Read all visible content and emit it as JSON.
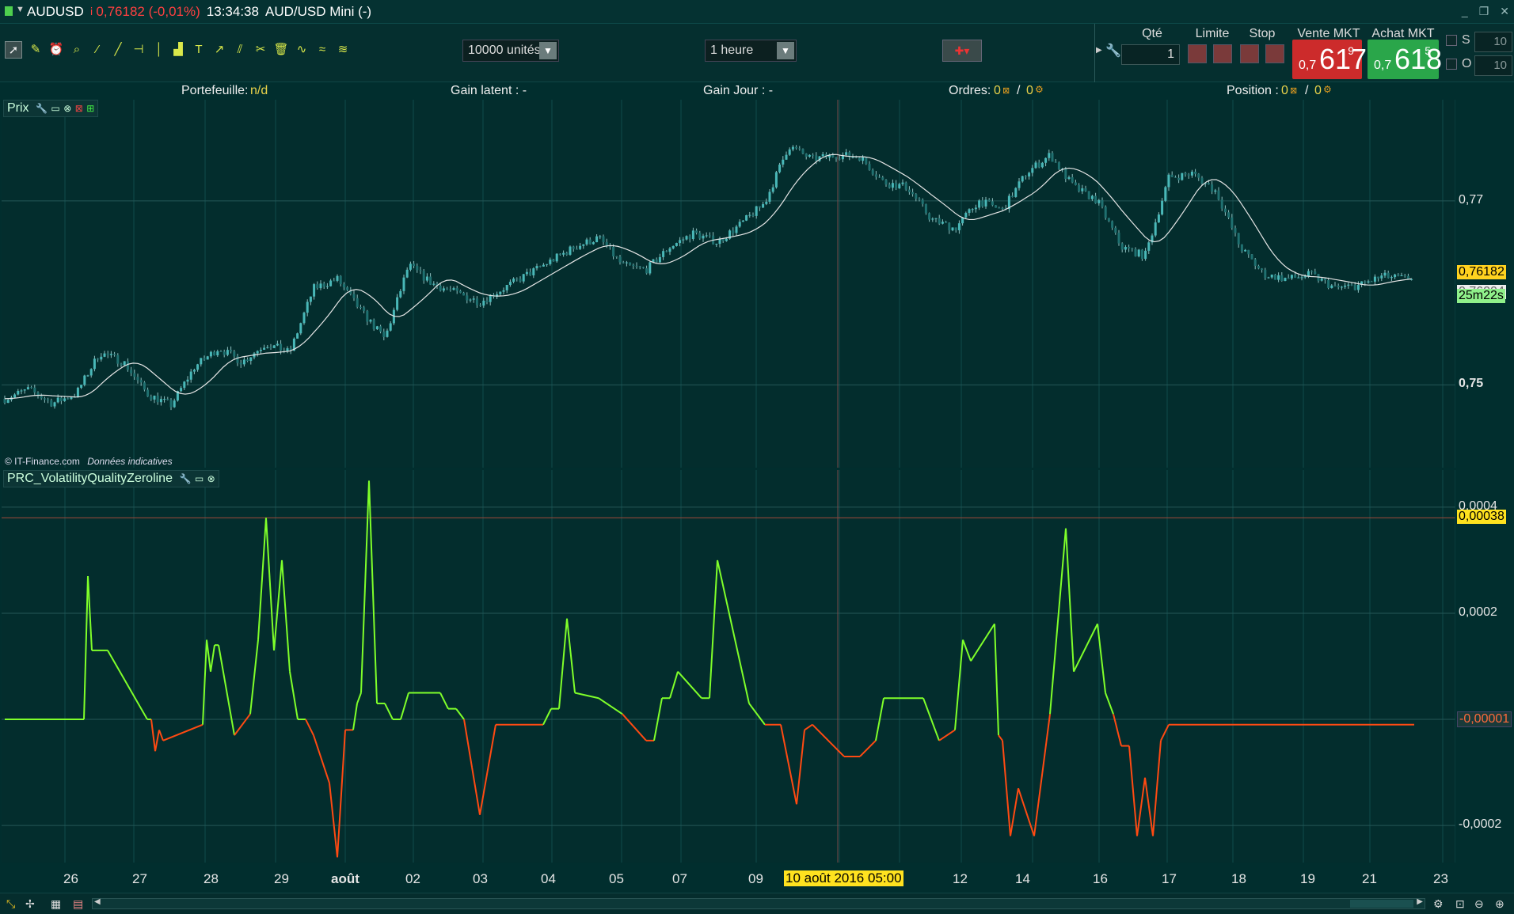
{
  "titlebar": {
    "symbol": "AUDUSD",
    "change": "0,76182 (-0,01%)",
    "time": "13:34:38",
    "instrument": "AUD/USD Mini (-)"
  },
  "toolbar": {
    "units": "10000 unités",
    "period": "1 heure",
    "qty_label": "Qté",
    "qty_value": "1",
    "limit_label": "Limite",
    "stop_label": "Stop",
    "sell_label": "Vente MKT",
    "buy_label": "Achat MKT",
    "sell_small": "0,7",
    "sell_big": "617",
    "sell_sup": "9",
    "buy_small": "0,7",
    "buy_big": "618",
    "buy_sup": "5",
    "s_label": "S",
    "s_value": "10",
    "o_label": "O",
    "o_value": "10"
  },
  "infobar": {
    "portfolio_label": "Portefeuille:",
    "portfolio_value": "n/d",
    "gain_latent": "Gain latent : -",
    "gain_jour": "Gain Jour : -",
    "ordres_label": "Ordres:",
    "ordres_a": "0",
    "ordres_b": "0",
    "position_label": "Position :",
    "position_a": "0",
    "position_b": "0"
  },
  "price_panel": {
    "label": "Prix",
    "ticks": [
      "0,77",
      "0,75"
    ],
    "last_price": "0,76182",
    "ma_value": "0,76004",
    "countdown": "25m22s",
    "credit": "© IT-Finance.com",
    "credit_note": "Données indicatives"
  },
  "indicator_panel": {
    "label": "PRC_VolatilityQualityZeroline",
    "ticks": [
      "0,0004",
      "0,0002",
      "-0,0002"
    ],
    "level_value": "0,00038",
    "last_value": "-0,00001"
  },
  "xaxis": {
    "labels": [
      "26",
      "27",
      "28",
      "29",
      "août",
      "02",
      "03",
      "04",
      "05",
      "07",
      "09",
      "12",
      "14",
      "16",
      "17",
      "18",
      "19",
      "21",
      "23"
    ],
    "cursor_label": "10 août 2016 05:00"
  },
  "colors": {
    "bg": "#012e2e",
    "candle": "#49b8b8",
    "ma": "#e6e6e6",
    "up": "#7fff2a",
    "down": "#ff4a12",
    "sell": "#d42b2b",
    "buy": "#2bb34a"
  },
  "chart_data": [
    {
      "type": "line",
      "series": [
        {
          "name": "Prix",
          "x": [
            0,
            30,
            60,
            90,
            120,
            150,
            180,
            210,
            240,
            270,
            300,
            330,
            360,
            390,
            420,
            450,
            480,
            510,
            540,
            570,
            600,
            630,
            660,
            690,
            720,
            750,
            780,
            810,
            840,
            870,
            900,
            930,
            960,
            990,
            1020,
            1050,
            1080,
            1110,
            1140,
            1170,
            1200,
            1230,
            1260,
            1290,
            1320,
            1350,
            1380,
            1410,
            1440,
            1470,
            1500,
            1530,
            1560,
            1590,
            1620,
            1650,
            1680,
            1710,
            1740,
            1770,
            1780
          ],
          "values": [
            0.7485,
            0.7495,
            0.748,
            0.749,
            0.7535,
            0.7525,
            0.749,
            0.7478,
            0.752,
            0.754,
            0.7525,
            0.7545,
            0.7535,
            0.7605,
            0.7615,
            0.758,
            0.755,
            0.763,
            0.761,
            0.76,
            0.759,
            0.7605,
            0.762,
            0.7635,
            0.765,
            0.766,
            0.763,
            0.7625,
            0.765,
            0.7665,
            0.7655,
            0.7675,
            0.7698,
            0.776,
            0.7745,
            0.775,
            0.7748,
            0.772,
            0.7715,
            0.768,
            0.767,
            0.77,
            0.769,
            0.773,
            0.775,
            0.7715,
            0.77,
            0.765,
            0.764,
            0.7725,
            0.773,
            0.771,
            0.765,
            0.762,
            0.7615,
            0.762,
            0.7605,
            0.7608,
            0.7618,
            0.7615,
            0.7618
          ]
        }
      ],
      "ylim": [
        0.741,
        0.781
      ]
    },
    {
      "type": "line",
      "series": [
        {
          "name": "PRC_VolatilityQualityZeroline",
          "x": [
            0,
            100,
            105,
            110,
            130,
            180,
            185,
            190,
            195,
            200,
            250,
            255,
            260,
            265,
            270,
            290,
            310,
            320,
            330,
            340,
            350,
            360,
            370,
            380,
            390,
            410,
            420,
            430,
            440,
            445,
            450,
            460,
            470,
            480,
            490,
            500,
            510,
            550,
            560,
            570,
            580,
            590,
            600,
            620,
            680,
            690,
            700,
            710,
            720,
            750,
            780,
            810,
            820,
            830,
            840,
            850,
            880,
            890,
            900,
            940,
            960,
            980,
            1000,
            1010,
            1020,
            1060,
            1080,
            1100,
            1110,
            1160,
            1180,
            1200,
            1210,
            1220,
            1250,
            1255,
            1260,
            1270,
            1280,
            1300,
            1320,
            1340,
            1350,
            1380,
            1390,
            1400,
            1410,
            1420,
            1430,
            1440,
            1450,
            1460,
            1470,
            1480,
            1510,
            1520,
            1540,
            1550,
            1560,
            1570,
            1580,
            1590,
            1600,
            1620,
            1700,
            1720,
            1740,
            1750,
            1760,
            1770,
            1780
          ],
          "values": [
            0,
            0,
            0.00027,
            0.00013,
            0.00013,
            0,
            0,
            -6e-05,
            -2e-05,
            -4e-05,
            -1e-05,
            0.00015,
            9e-05,
            0.00014,
            0.00014,
            -3e-05,
            1e-05,
            0.00015,
            0.00038,
            0.00013,
            0.0003,
            9e-05,
            0.0,
            0.0,
            -3e-05,
            -0.00012,
            -0.00026,
            -2e-05,
            -2e-05,
            3e-05,
            5e-05,
            0.00045,
            3e-05,
            3e-05,
            0.0,
            0.0,
            5e-05,
            5e-05,
            2e-05,
            2e-05,
            0.0,
            -9e-05,
            -0.00018,
            -1e-05,
            -1e-05,
            2e-05,
            2e-05,
            0.00019,
            5e-05,
            4e-05,
            1e-05,
            -4e-05,
            -4e-05,
            4e-05,
            4e-05,
            9e-05,
            4e-05,
            4e-05,
            0.0003,
            3e-05,
            -1e-05,
            -1e-05,
            -0.00016,
            -2e-05,
            -1e-05,
            -7e-05,
            -7e-05,
            -4e-05,
            4e-05,
            4e-05,
            -4e-05,
            -2e-05,
            0.00015,
            0.00011,
            0.00018,
            -3e-05,
            -4e-05,
            -0.00022,
            -0.00013,
            -0.00022,
            1e-05,
            0.00036,
            9e-05,
            0.00018,
            5e-05,
            1e-05,
            -5e-05,
            -5e-05,
            -0.00022,
            -0.00011,
            -0.00022,
            -4e-05,
            -1e-05,
            -1e-05,
            -1e-05,
            -1e-05,
            -1e-05,
            -1e-05,
            -1e-05,
            -1e-05,
            -1e-05,
            -1e-05,
            -1e-05,
            -1e-05,
            -1e-05,
            -1e-05,
            -1e-05,
            -1e-05,
            -1e-05,
            -1e-05,
            -1e-05
          ]
        }
      ],
      "ylim": [
        -0.00027,
        0.00047
      ]
    }
  ]
}
